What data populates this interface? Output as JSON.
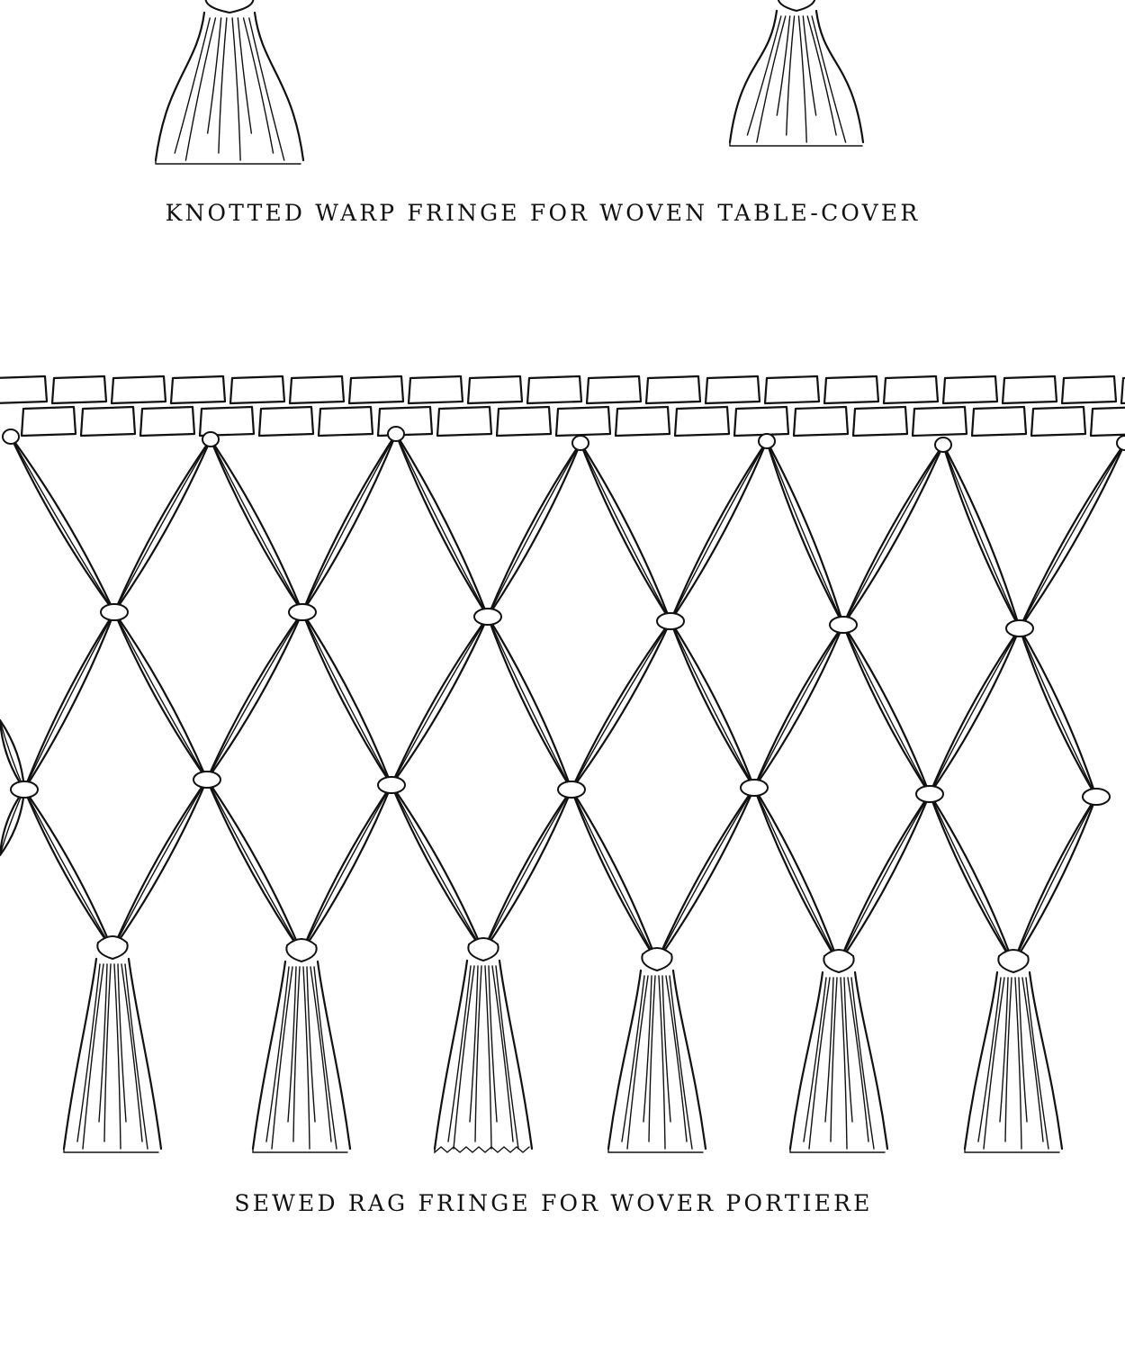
{
  "figures": [
    {
      "id": "knotted-warp-fringe",
      "caption": "KNOTTED WARP FRINGE FOR WOVEN TABLE-COVER"
    },
    {
      "id": "sewed-rag-fringe",
      "caption": "SEWED RAG FRINGE FOR WOVER PORTIERE"
    }
  ]
}
